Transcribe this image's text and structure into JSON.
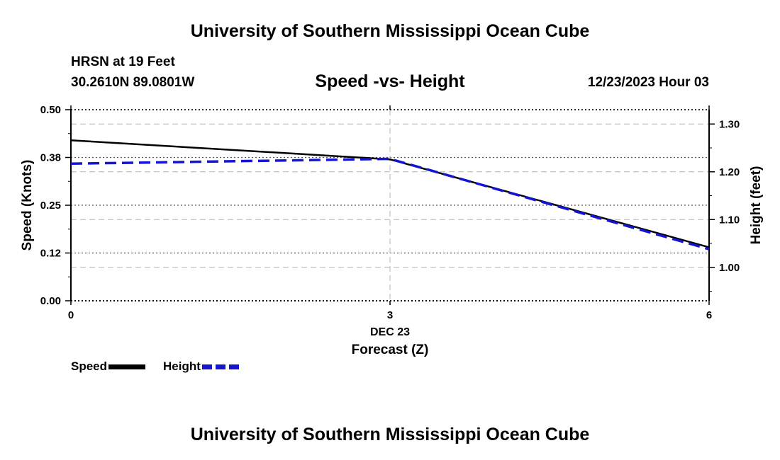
{
  "header": {
    "title": "University of Southern Mississippi Ocean Cube",
    "station": "HRSN at 19 Feet",
    "coordinates": "30.2610N  89.0801W",
    "date": "12/23/2023 Hour 03"
  },
  "footer": {
    "title": "University of Southern Mississippi Ocean Cube"
  },
  "colors": {
    "speed": "#000000",
    "height": "#1414d2",
    "grid": "#b4b4b4"
  },
  "chart_data": {
    "type": "line",
    "title": "Speed -vs- Height",
    "xlabel": "Forecast (Z)",
    "x_sublabel": "DEC 23",
    "ylabel": "Speed (Knots)",
    "y2label": "Height (feet)",
    "x": [
      0,
      3,
      6
    ],
    "xlim": [
      0,
      6
    ],
    "ylim": [
      0,
      0.5
    ],
    "y2lim": [
      0.93,
      1.33
    ],
    "x_ticks": [
      "0",
      "3",
      "6"
    ],
    "y_ticks": [
      "0.00",
      "0.12",
      "0.25",
      "0.38",
      "0.50"
    ],
    "y_tick_values": [
      0,
      0.125,
      0.25,
      0.375,
      0.5
    ],
    "y2_ticks": [
      "1.00",
      "1.10",
      "1.20",
      "1.30"
    ],
    "y2_tick_values": [
      1.0,
      1.1,
      1.2,
      1.3
    ],
    "series": [
      {
        "name": "Speed",
        "axis": "left",
        "style": "solid",
        "values": [
          0.42,
          0.37,
          0.14
        ]
      },
      {
        "name": "Height",
        "axis": "right",
        "style": "dashed",
        "values": [
          1.217,
          1.227,
          1.038
        ]
      }
    ],
    "legend": [
      "Speed",
      "Height"
    ]
  }
}
